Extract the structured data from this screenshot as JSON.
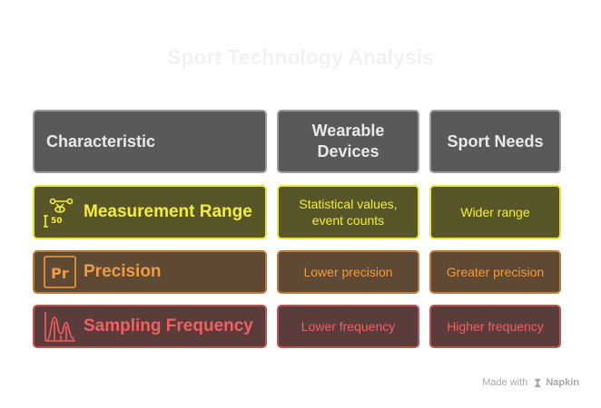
{
  "title": "Sport Technology Analysis",
  "headers": {
    "characteristic": "Characteristic",
    "wearable": "Wearable Devices",
    "sport_needs": "Sport Needs"
  },
  "rows": [
    {
      "label": "Measurement Range",
      "wearable": "Statistical values, event counts",
      "sport_needs": "Wider range",
      "icon": "measurement-icon",
      "color": "#f3ef2f"
    },
    {
      "label": "Precision",
      "wearable": "Lower precision",
      "sport_needs": "Greater precision",
      "icon": "precision-icon",
      "color": "#f39a40"
    },
    {
      "label": "Sampling Frequency",
      "wearable": "Lower frequency",
      "sport_needs": "Higher frequency",
      "icon": "frequency-icon",
      "color": "#f45f5f"
    }
  ],
  "footer": {
    "made_with": "Made with",
    "brand": "Napkin"
  }
}
